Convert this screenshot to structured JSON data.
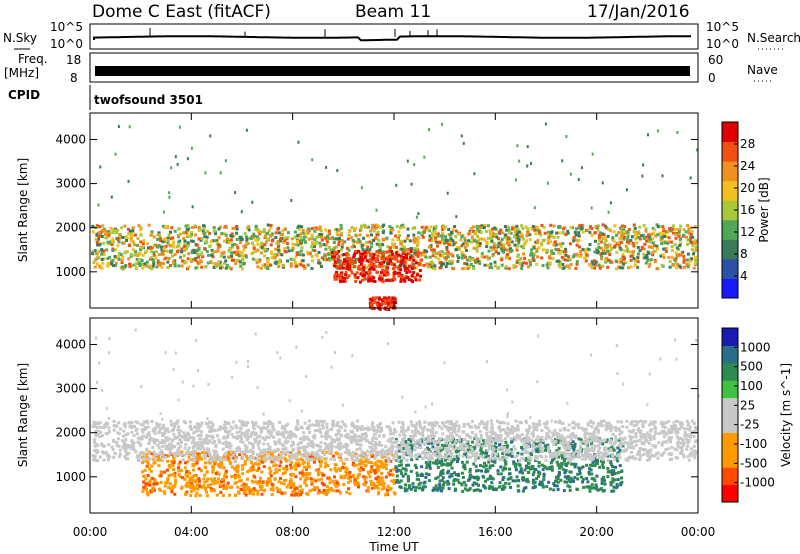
{
  "header": {
    "station": "Dome C East (fitACF)",
    "beam": "Beam 11",
    "date": "17/Jan/2016"
  },
  "nsky_panel": {
    "left_label": "N.Sky",
    "left_ticks": [
      "10^5",
      "10^0"
    ],
    "right_label": "N.Search",
    "right_ticks": [
      "10^5",
      "10^0"
    ]
  },
  "freq_panel": {
    "left_label_1": "Freq.",
    "left_label_2": "[MHz]",
    "left_ticks": [
      "18",
      "8"
    ],
    "right_label": "Nave",
    "right_ticks": [
      "60",
      "0"
    ]
  },
  "cpid": {
    "label": "CPID",
    "value": "twofsound 3501"
  },
  "x_axis": {
    "label": "Time UT",
    "ticks": [
      "00:00",
      "04:00",
      "08:00",
      "12:00",
      "16:00",
      "20:00",
      "00:00"
    ]
  },
  "colors": {
    "power_scale": [
      "#1a1aff",
      "#2c4fa8",
      "#3a7a5a",
      "#4fa85a",
      "#a8c83a",
      "#f0c020",
      "#f09020",
      "#f05010",
      "#e00000"
    ],
    "velocity_scale": [
      "#ff0000",
      "#ff4a00",
      "#ff9a00",
      "#ff9a00",
      "#c8c8c8",
      "#c8c8c8",
      "#40c040",
      "#2e8a50",
      "#2a6e8a",
      "#1a1ab0"
    ]
  },
  "chart_data": [
    {
      "type": "heatmap",
      "title": "",
      "xlabel": "Time UT",
      "ylabel": "Slant Range [km]",
      "x_range": [
        "00:00",
        "24:00"
      ],
      "ylim": [
        180,
        4600
      ],
      "y_ticks": [
        "1000",
        "2000",
        "3000",
        "4000"
      ],
      "colorbar": {
        "label": "Power [dB]",
        "ticks": [
          "4",
          "8",
          "12",
          "16",
          "20",
          "24",
          "28"
        ],
        "range": [
          0,
          30
        ]
      },
      "features": [
        {
          "time_start": "00:00",
          "time_end": "24:00",
          "range_low": 1100,
          "range_high": 2100,
          "note": "main echo band"
        },
        {
          "time_start": "09:30",
          "time_end": "13:00",
          "range_low": 800,
          "range_high": 1500,
          "note": "strongest power"
        },
        {
          "time_start": "11:00",
          "time_end": "12:00",
          "range_low": 180,
          "range_high": 450,
          "note": "near-range power"
        }
      ]
    },
    {
      "type": "heatmap",
      "title": "",
      "xlabel": "Time UT",
      "ylabel": "Slant Range [km]",
      "x_range": [
        "00:00",
        "24:00"
      ],
      "ylim": [
        180,
        4600
      ],
      "y_ticks": [
        "1000",
        "2000",
        "3000",
        "4000"
      ],
      "colorbar": {
        "label": "Velocity [m s^-1]",
        "ticks": [
          "1000",
          "500",
          "100",
          "25",
          "-25",
          "-100",
          "-500",
          "-1000"
        ],
        "range": [
          -1000,
          1000
        ]
      },
      "features": [
        {
          "time_start": "02:00",
          "time_end": "12:00",
          "range_low": 600,
          "range_high": 1600,
          "note": "negative velocity (orange)"
        },
        {
          "time_start": "12:00",
          "time_end": "21:00",
          "range_low": 700,
          "range_high": 1900,
          "note": "positive velocity (green)"
        },
        {
          "time_start": "00:00",
          "time_end": "24:00",
          "range_low": 1400,
          "range_high": 2300,
          "note": "near-zero velocity (gray)"
        }
      ]
    }
  ]
}
